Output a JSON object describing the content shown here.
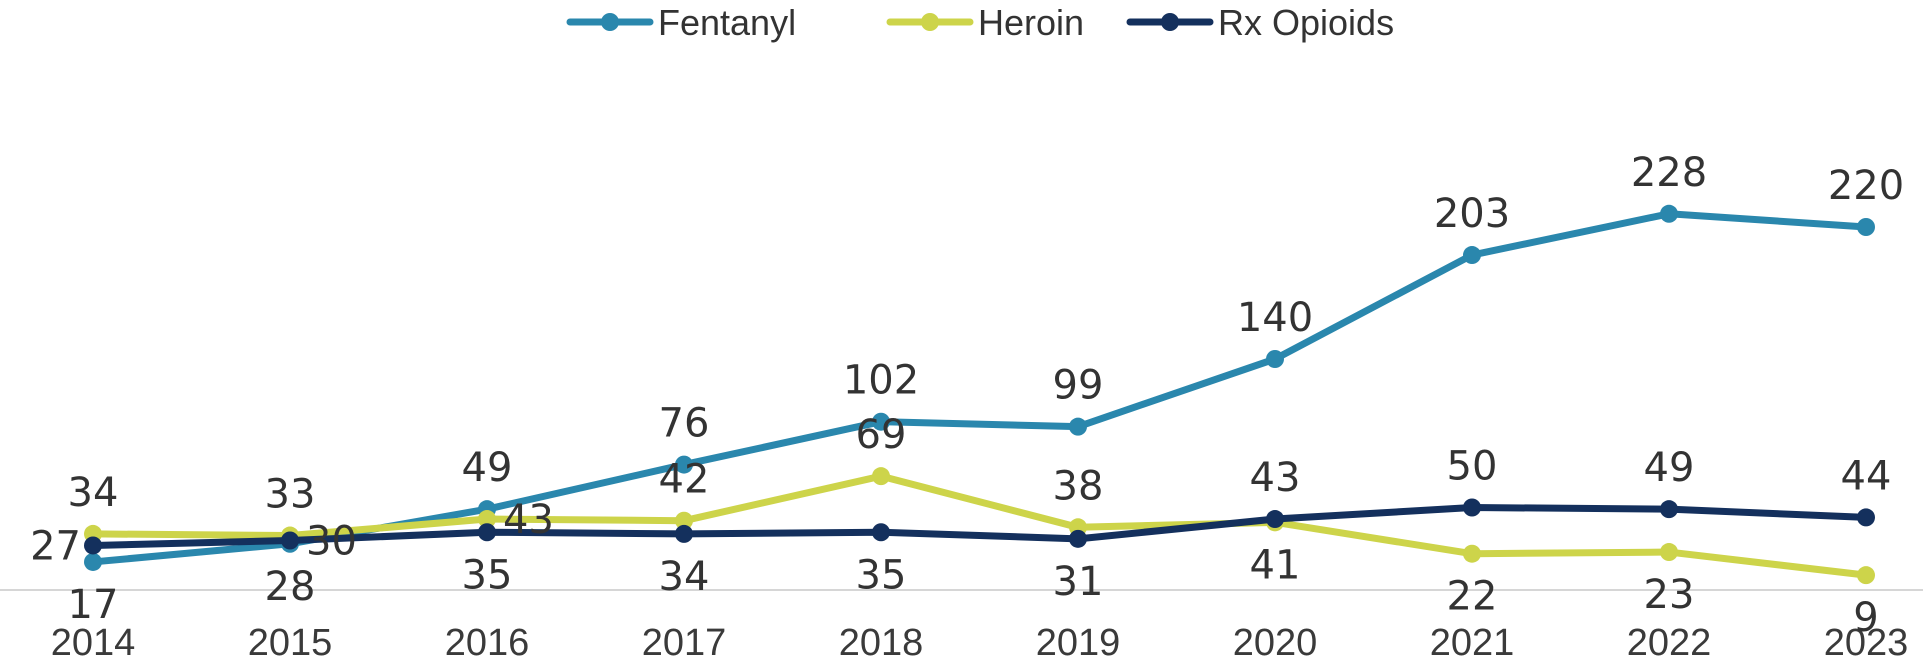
{
  "chart_data": {
    "type": "line",
    "title": "",
    "xlabel": "",
    "ylabel": "",
    "categories": [
      "2014",
      "2015",
      "2016",
      "2017",
      "2018",
      "2019",
      "2020",
      "2021",
      "2022",
      "2023"
    ],
    "ylim": [
      0,
      240
    ],
    "grid": false,
    "legend": "top-center",
    "series": [
      {
        "name": "Fentanyl",
        "color": "#2a87ad",
        "values": [
          17,
          28,
          49,
          76,
          102,
          99,
          140,
          203,
          228,
          220
        ]
      },
      {
        "name": "Heroin",
        "color": "#cdd44a",
        "values": [
          34,
          33,
          43,
          42,
          69,
          38,
          41,
          22,
          23,
          9
        ]
      },
      {
        "name": "Rx Opioids",
        "color": "#14305d",
        "values": [
          27,
          30,
          35,
          34,
          35,
          31,
          43,
          50,
          49,
          44
        ]
      }
    ]
  }
}
